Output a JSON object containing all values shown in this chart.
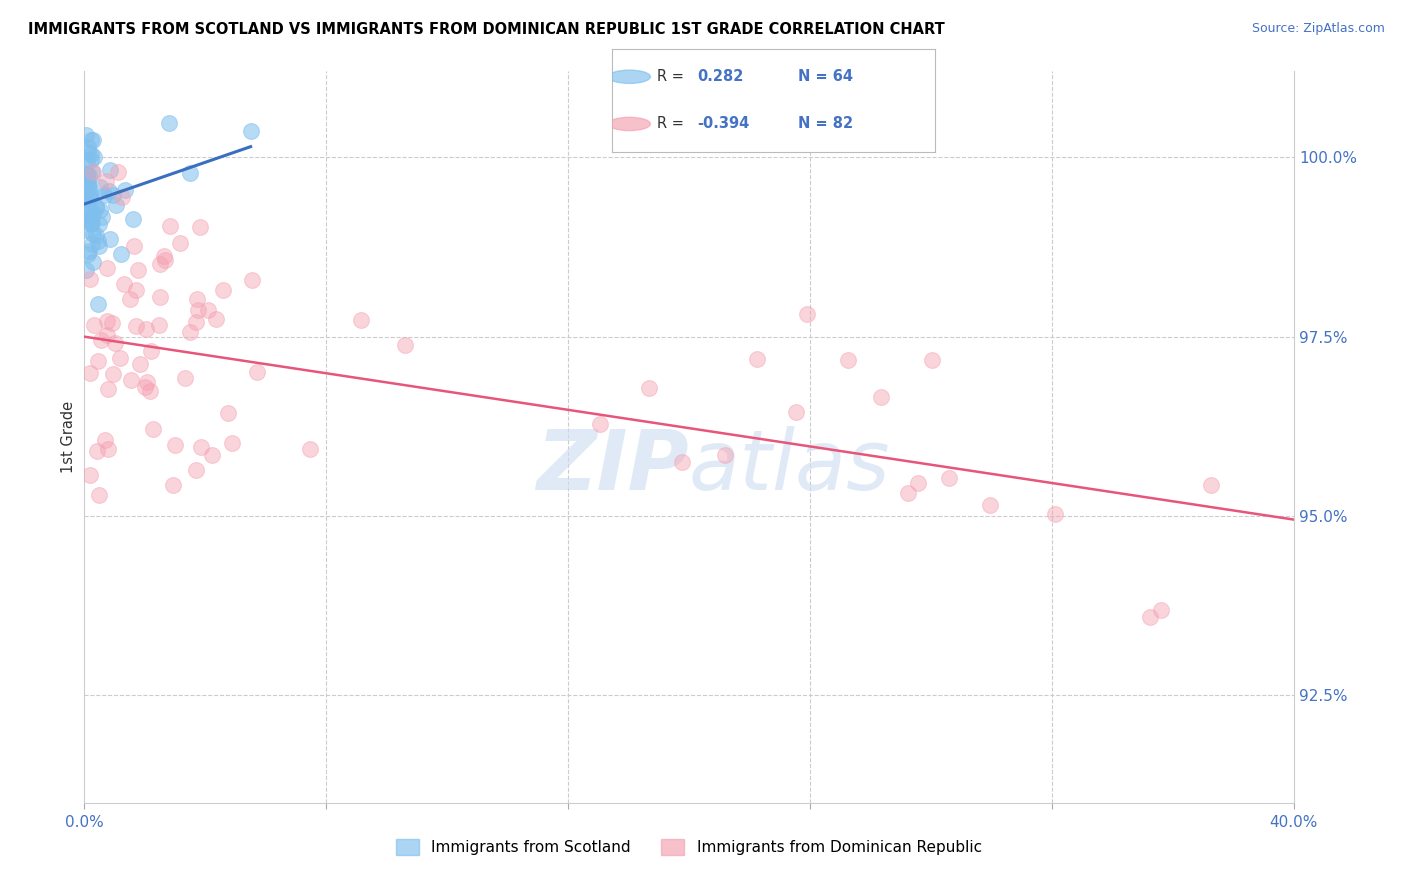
{
  "title": "IMMIGRANTS FROM SCOTLAND VS IMMIGRANTS FROM DOMINICAN REPUBLIC 1ST GRADE CORRELATION CHART",
  "source": "Source: ZipAtlas.com",
  "ylabel": "1st Grade",
  "yaxis_values": [
    100.0,
    97.5,
    95.0,
    92.5
  ],
  "xlim": [
    0.0,
    40.0
  ],
  "ylim": [
    91.0,
    101.2
  ],
  "blue_color": "#7fbfed",
  "blue_line_color": "#3a6fbf",
  "pink_color": "#f4a0b0",
  "pink_line_color": "#e8557a",
  "blue_label": "Immigrants from Scotland",
  "pink_label": "Immigrants from Dominican Republic",
  "pink_line_x0": 0.0,
  "pink_line_y0": 97.5,
  "pink_line_x1": 40.0,
  "pink_line_y1": 94.95,
  "blue_line_x0": 0.0,
  "blue_line_y0": 99.35,
  "blue_line_x1": 5.5,
  "blue_line_y1": 100.15
}
